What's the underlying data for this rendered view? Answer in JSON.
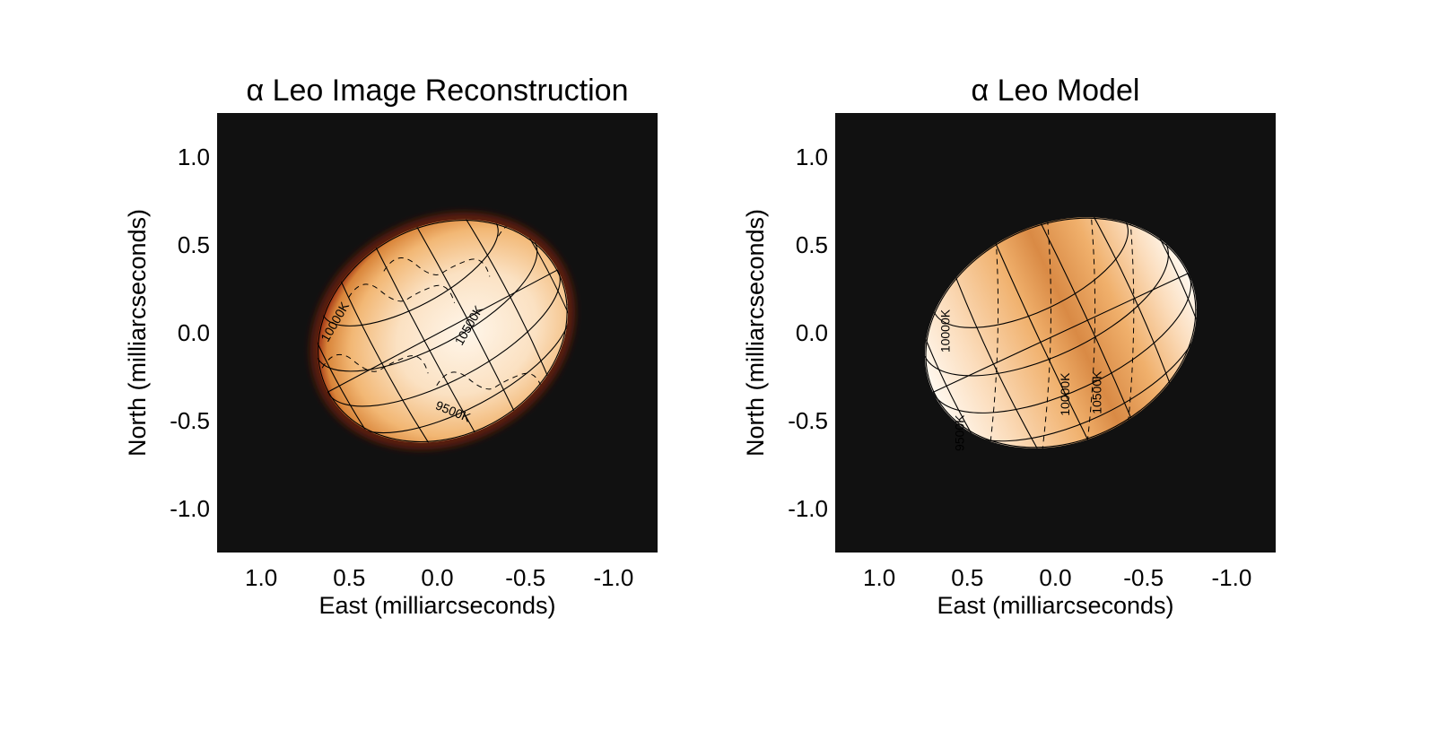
{
  "chart_data": [
    {
      "type": "heatmap",
      "title": "α Leo Image Reconstruction",
      "xlabel": "East (milliarcseconds)",
      "ylabel": "North (milliarcseconds)",
      "xlim": [
        1.25,
        -1.25
      ],
      "ylim": [
        -1.25,
        1.25
      ],
      "xticks": [
        "1.0",
        "0.5",
        "0.0",
        "-0.5",
        "-1.0"
      ],
      "yticks": [
        "1.0",
        "0.5",
        "0.0",
        "-0.5",
        "-1.0"
      ],
      "xtick_values": [
        1.0,
        0.5,
        0.0,
        -0.5,
        -1.0
      ],
      "ytick_values": [
        1.0,
        0.5,
        0.0,
        -0.5,
        -1.0
      ],
      "background_color": "#111111",
      "colors": {
        "hot": "#fff6ea",
        "mid": "#f2b774",
        "cool": "#d9853a",
        "limb": "#9a2a10"
      },
      "star": {
        "center_x": -0.03,
        "center_y": 0.01,
        "semi_major": 0.74,
        "semi_minor": 0.6,
        "position_angle_deg": -28
      },
      "contour_labels": [
        {
          "text": "10000K",
          "x": 0.56,
          "y": 0.05
        },
        {
          "text": "10500K",
          "x": -0.2,
          "y": 0.03
        },
        {
          "text": "9500K",
          "x": -0.08,
          "y": -0.47
        }
      ],
      "grid": "latitude/longitude overlay",
      "legend": "none"
    },
    {
      "type": "heatmap",
      "title": "α Leo Model",
      "xlabel": "East (milliarcseconds)",
      "ylabel": "North (milliarcseconds)",
      "xlim": [
        1.25,
        -1.25
      ],
      "ylim": [
        -1.25,
        1.25
      ],
      "xticks": [
        "1.0",
        "0.5",
        "0.0",
        "-0.5",
        "-1.0"
      ],
      "yticks": [
        "1.0",
        "0.5",
        "0.0",
        "-0.5",
        "-1.0"
      ],
      "xtick_values": [
        1.0,
        0.5,
        0.0,
        -0.5,
        -1.0
      ],
      "ytick_values": [
        1.0,
        0.5,
        0.0,
        -0.5,
        -1.0
      ],
      "background_color": "#111111",
      "colors": {
        "hot": "#fff8ef",
        "mid": "#f0b06c",
        "cool": "#d98a45"
      },
      "star": {
        "center_x": -0.03,
        "center_y": 0.0,
        "semi_major": 0.8,
        "semi_minor": 0.62,
        "position_angle_deg": -25
      },
      "contour_labels": [
        {
          "text": "10000K",
          "x": -0.08,
          "y": -0.35
        },
        {
          "text": "10500K",
          "x": -0.26,
          "y": -0.34
        },
        {
          "text": "10000K",
          "x": 0.6,
          "y": 0.01
        },
        {
          "text": "9500K",
          "x": 0.52,
          "y": -0.57
        }
      ],
      "grid": "latitude/longitude overlay",
      "legend": "none"
    }
  ]
}
